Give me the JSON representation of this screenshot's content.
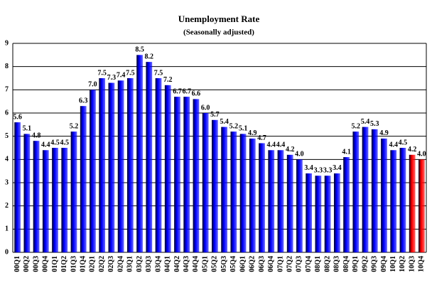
{
  "chart_data": {
    "type": "bar",
    "title": "Unemployment Rate",
    "subtitle": "(Seasonally adjusted)",
    "categories": [
      "00Q1",
      "00Q2",
      "00Q3",
      "00Q4",
      "01Q1",
      "01Q2",
      "01Q3",
      "01Q4",
      "02Q1",
      "02Q2",
      "02Q3",
      "02Q4",
      "03Q1",
      "03Q2",
      "03Q3",
      "03Q4",
      "04Q1",
      "04Q2",
      "04Q3",
      "04Q4",
      "05Q1",
      "05Q2",
      "05Q3",
      "05Q4",
      "06Q1",
      "06Q2",
      "06Q3",
      "06Q4",
      "07Q1",
      "07Q2",
      "07Q3",
      "07Q4",
      "08Q1",
      "08Q2",
      "08Q3",
      "08Q4",
      "09Q1",
      "09Q2",
      "09Q3",
      "09Q4",
      "10Q1",
      "10Q2",
      "10Q3",
      "10Q4"
    ],
    "values": [
      5.6,
      5.1,
      4.8,
      4.4,
      4.5,
      4.5,
      5.2,
      6.3,
      7.0,
      7.5,
      7.3,
      7.4,
      7.5,
      8.5,
      8.2,
      7.5,
      7.2,
      6.7,
      6.7,
      6.6,
      6.0,
      5.7,
      5.4,
      5.2,
      5.1,
      4.9,
      4.7,
      4.4,
      4.4,
      4.2,
      4.0,
      3.4,
      3.3,
      3.3,
      3.4,
      4.1,
      5.2,
      5.4,
      5.3,
      4.9,
      4.4,
      4.5,
      4.2,
      4.0
    ],
    "value_labels": [
      "5.6",
      "5.1",
      "4.8",
      "4.4",
      "4.5",
      "4.5",
      "5.2",
      "6.3",
      "7.0",
      "7.5",
      "7.3",
      "7.4",
      "7.5",
      "8.5",
      "8.2",
      "7.5",
      "7.2",
      "6.7",
      "6.7",
      "6.6",
      "6.0",
      "5.7",
      "5.4",
      "5.2",
      "5.1",
      "4.9",
      "4.7",
      "4.4",
      "4.4",
      "4.2",
      "4.0",
      "3.4",
      "3.3",
      "3.3",
      "3.4",
      "4.1",
      "5.2",
      "5.4",
      "5.3",
      "4.9",
      "4.4",
      "4.5",
      "4.2",
      "4.0"
    ],
    "colors": [
      "#0000ff",
      "#0000ff",
      "#0000ff",
      "#0000ff",
      "#0000ff",
      "#0000ff",
      "#0000ff",
      "#0000ff",
      "#0000ff",
      "#0000ff",
      "#0000ff",
      "#0000ff",
      "#0000ff",
      "#0000ff",
      "#0000ff",
      "#0000ff",
      "#0000ff",
      "#0000ff",
      "#0000ff",
      "#0000ff",
      "#0000ff",
      "#0000ff",
      "#0000ff",
      "#0000ff",
      "#0000ff",
      "#0000ff",
      "#0000ff",
      "#0000ff",
      "#0000ff",
      "#0000ff",
      "#0000ff",
      "#0000ff",
      "#0000ff",
      "#0000ff",
      "#0000ff",
      "#0000ff",
      "#0000ff",
      "#0000ff",
      "#0000ff",
      "#0000ff",
      "#0000ff",
      "#0000ff",
      "#ff0000",
      "#ff0000"
    ],
    "ylim": [
      0,
      9
    ],
    "yticks": [
      0,
      1,
      2,
      3,
      4,
      5,
      6,
      7,
      8,
      9
    ],
    "grid": true
  }
}
